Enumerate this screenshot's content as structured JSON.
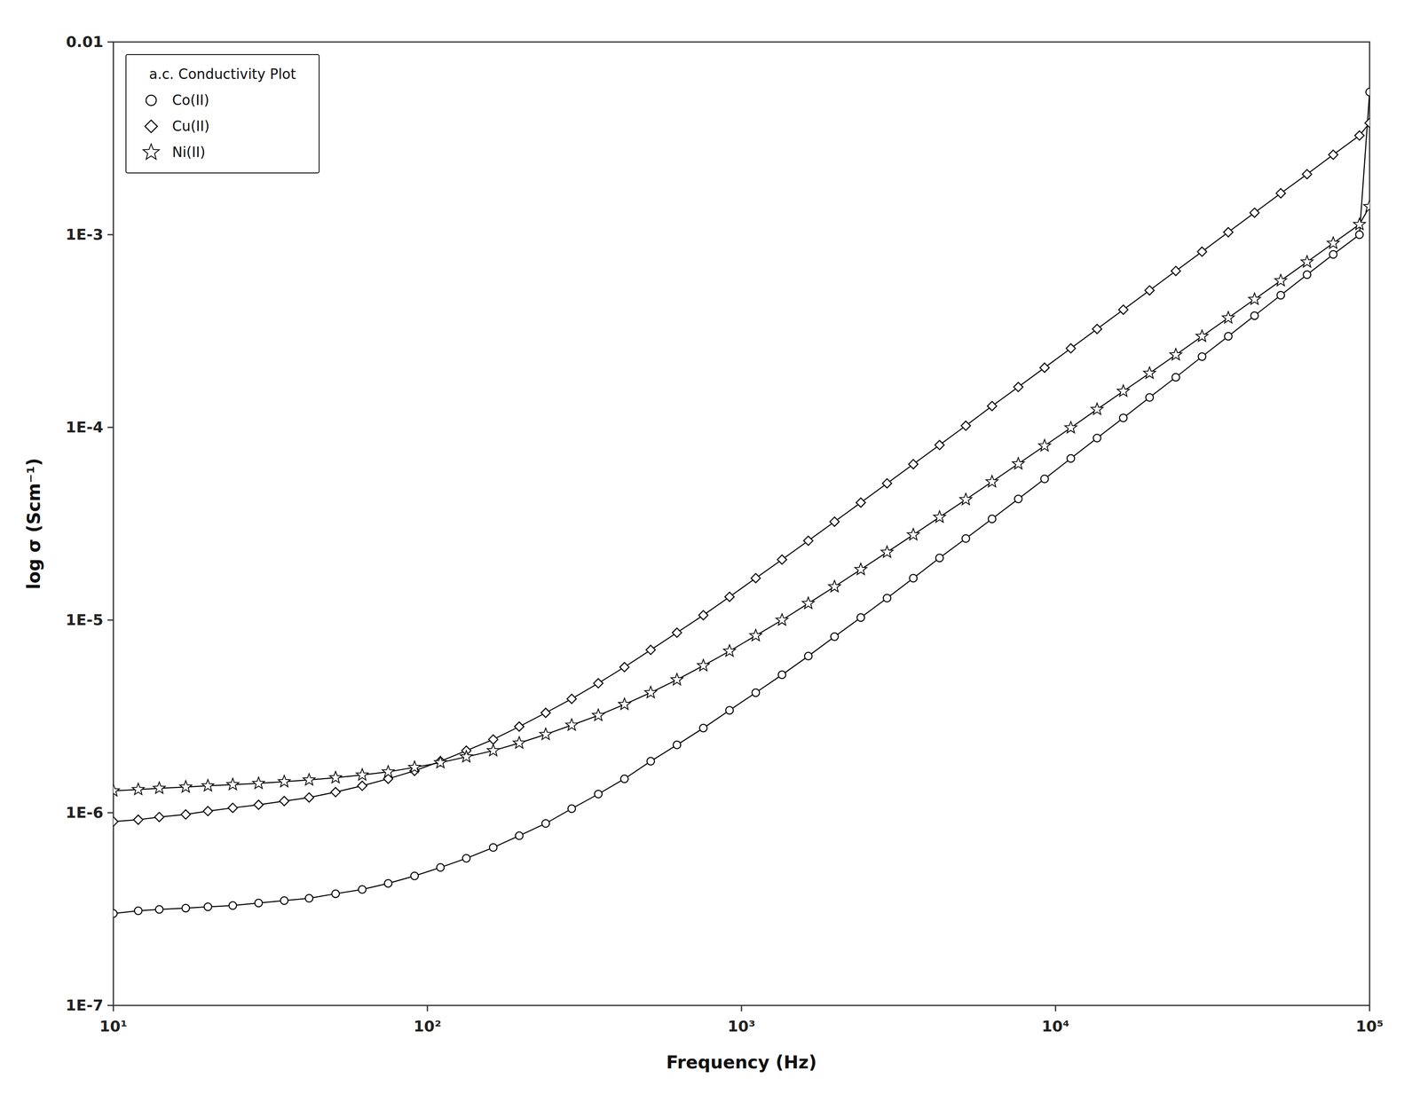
{
  "chart_data": {
    "type": "line",
    "legend_title": "a.c. Conductivity Plot",
    "x_label": "Frequency (Hz)",
    "y_label": "log σ (Scm⁻¹)",
    "log": true,
    "grid": false,
    "legend": "upper left",
    "xlim": [
      10,
      100000
    ],
    "ylim": [
      1e-07,
      0.01
    ],
    "xticks": [
      {
        "value": 10,
        "label": "10¹"
      },
      {
        "value": 100,
        "label": "10²"
      },
      {
        "value": 1000,
        "label": "10³"
      },
      {
        "value": 10000,
        "label": "10⁴"
      },
      {
        "value": 100000,
        "label": "10⁵"
      }
    ],
    "yticks": [
      {
        "value": 1e-07,
        "label": "1E-7"
      },
      {
        "value": 1e-06,
        "label": "1E-6"
      },
      {
        "value": 1e-05,
        "label": "1E-5"
      },
      {
        "value": 0.0001,
        "label": "1E-4"
      },
      {
        "value": 0.001,
        "label": "1E-3"
      },
      0.01
    ],
    "x": [
      10,
      12,
      14,
      17,
      20,
      24,
      29,
      35,
      42,
      51,
      62,
      75,
      91,
      110,
      133,
      162,
      196,
      238,
      288,
      350,
      424,
      514,
      623,
      756,
      916,
      1110,
      1346,
      1632,
      1978,
      2398,
      2907,
      3524,
      4272,
      5179,
      6277,
      7610,
      9227,
      11184,
      13558,
      16434,
      19920,
      24150,
      29270,
      35480,
      43010,
      52130,
      63200,
      76580,
      92820,
      100000
    ],
    "series": [
      {
        "name": "Co(II)",
        "color": "#000000",
        "marker": "circle",
        "line_style": "solid",
        "values": [
          3e-07,
          3.1e-07,
          3.15e-07,
          3.2e-07,
          3.25e-07,
          3.3e-07,
          3.4e-07,
          3.5e-07,
          3.6e-07,
          3.8e-07,
          4e-07,
          4.3e-07,
          4.7e-07,
          5.2e-07,
          5.8e-07,
          6.6e-07,
          7.6e-07,
          8.8e-07,
          1.05e-06,
          1.25e-06,
          1.5e-06,
          1.85e-06,
          2.25e-06,
          2.75e-06,
          3.4e-06,
          4.2e-06,
          5.2e-06,
          6.5e-06,
          8.2e-06,
          1.03e-05,
          1.3e-05,
          1.65e-05,
          2.1e-05,
          2.65e-05,
          3.35e-05,
          4.25e-05,
          5.4e-05,
          6.9e-05,
          8.8e-05,
          0.000112,
          0.000143,
          0.000182,
          0.000233,
          0.000297,
          0.00038,
          0.000485,
          0.00062,
          0.00079,
          0.001,
          0.0055
        ]
      },
      {
        "name": "Cu(II)",
        "color": "#000000",
        "marker": "diamond",
        "line_style": "solid",
        "values": [
          9e-07,
          9.2e-07,
          9.5e-07,
          9.8e-07,
          1.02e-06,
          1.06e-06,
          1.1e-06,
          1.15e-06,
          1.2e-06,
          1.28e-06,
          1.38e-06,
          1.5e-06,
          1.65e-06,
          1.85e-06,
          2.1e-06,
          2.4e-06,
          2.8e-06,
          3.3e-06,
          3.9e-06,
          4.7e-06,
          5.7e-06,
          7e-06,
          8.6e-06,
          1.06e-05,
          1.32e-05,
          1.65e-05,
          2.06e-05,
          2.58e-05,
          3.24e-05,
          4.07e-05,
          5.12e-05,
          6.44e-05,
          8.1e-05,
          0.000102,
          0.000129,
          0.000162,
          0.000204,
          0.000257,
          0.000324,
          0.000408,
          0.000514,
          0.000648,
          0.000816,
          0.00103,
          0.0013,
          0.00164,
          0.00206,
          0.0026,
          0.00327,
          0.0038
        ]
      },
      {
        "name": "Ni(II)",
        "color": "#000000",
        "marker": "star",
        "line_style": "solid",
        "values": [
          1.3e-06,
          1.32e-06,
          1.34e-06,
          1.36e-06,
          1.38e-06,
          1.4e-06,
          1.42e-06,
          1.45e-06,
          1.48e-06,
          1.52e-06,
          1.57e-06,
          1.63e-06,
          1.72e-06,
          1.82e-06,
          1.95e-06,
          2.1e-06,
          2.3e-06,
          2.55e-06,
          2.85e-06,
          3.2e-06,
          3.65e-06,
          4.2e-06,
          4.9e-06,
          5.8e-06,
          6.9e-06,
          8.3e-06,
          1e-05,
          1.22e-05,
          1.49e-05,
          1.83e-05,
          2.25e-05,
          2.77e-05,
          3.42e-05,
          4.22e-05,
          5.22e-05,
          6.47e-05,
          8.02e-05,
          9.95e-05,
          0.000124,
          0.000154,
          0.000191,
          0.000238,
          0.000297,
          0.00037,
          0.000462,
          0.000577,
          0.000722,
          0.000903,
          0.00113,
          0.0014
        ]
      }
    ]
  }
}
